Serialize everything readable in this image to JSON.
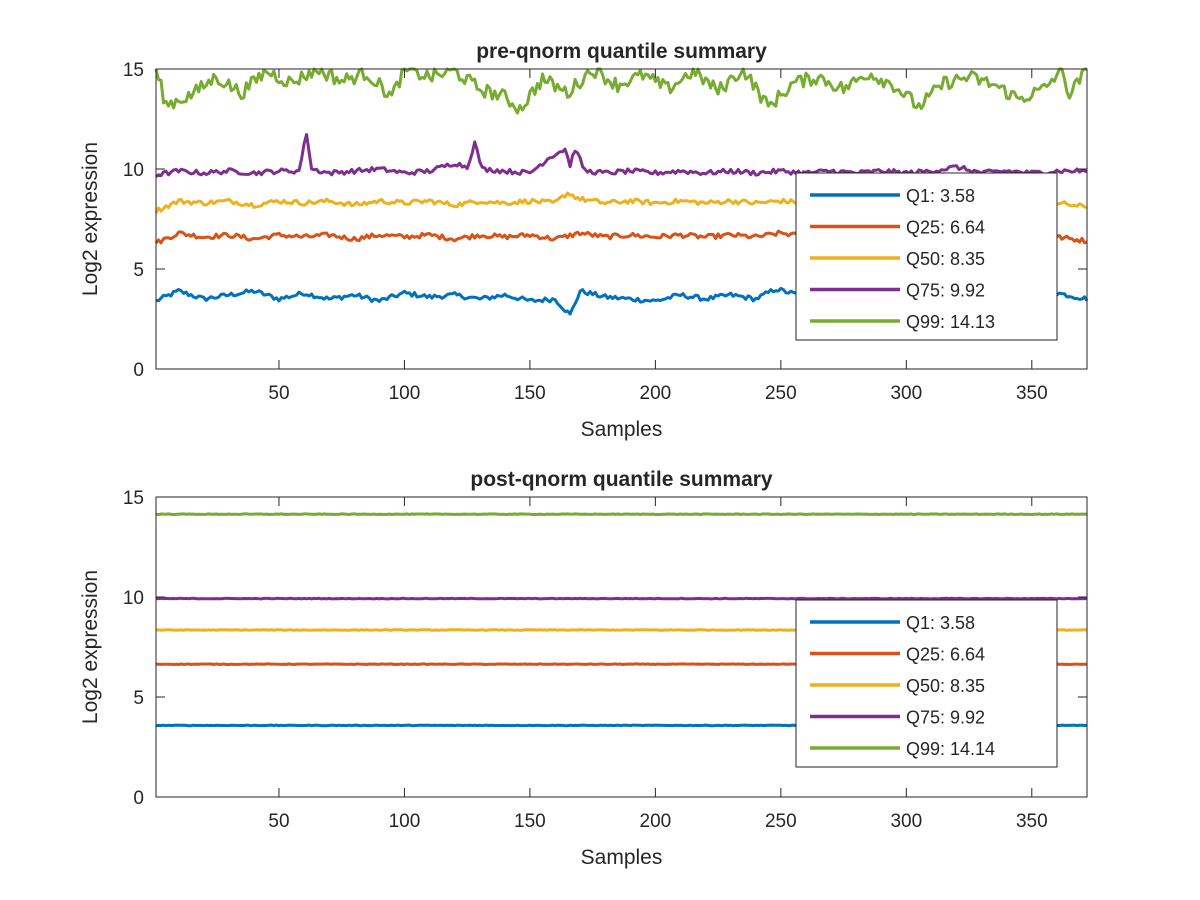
{
  "figure": {
    "background": "#ffffff"
  },
  "chart_data": [
    {
      "type": "line",
      "title": "pre-qnorm quantile summary",
      "xlabel": "Samples",
      "ylabel": "Log2 expression",
      "xlim": [
        1,
        372
      ],
      "ylim": [
        0,
        15
      ],
      "xticks": [
        50,
        100,
        150,
        200,
        250,
        300,
        350
      ],
      "yticks": [
        0,
        5,
        10,
        15
      ],
      "grid": false,
      "legend_position": "right-middle",
      "n_samples": 372,
      "series": [
        {
          "name": "Q1: 3.58",
          "color": "#0072BD",
          "mean": 3.58,
          "values_by_x": [
            [
              1,
              3.4
            ],
            [
              10,
              3.9
            ],
            [
              20,
              3.5
            ],
            [
              30,
              3.7
            ],
            [
              40,
              3.9
            ],
            [
              50,
              3.5
            ],
            [
              60,
              3.8
            ],
            [
              70,
              3.5
            ],
            [
              80,
              3.7
            ],
            [
              90,
              3.4
            ],
            [
              100,
              3.8
            ],
            [
              110,
              3.6
            ],
            [
              120,
              3.7
            ],
            [
              130,
              3.5
            ],
            [
              140,
              3.7
            ],
            [
              150,
              3.4
            ],
            [
              160,
              3.5
            ],
            [
              166,
              2.7
            ],
            [
              170,
              3.9
            ],
            [
              180,
              3.6
            ],
            [
              190,
              3.5
            ],
            [
              200,
              3.4
            ],
            [
              210,
              3.7
            ],
            [
              220,
              3.5
            ],
            [
              230,
              3.7
            ],
            [
              240,
              3.5
            ],
            [
              248,
              4.0
            ],
            [
              260,
              3.6
            ],
            [
              270,
              3.5
            ],
            [
              280,
              3.7
            ],
            [
              290,
              3.6
            ],
            [
              300,
              3.7
            ],
            [
              310,
              3.5
            ],
            [
              320,
              3.6
            ],
            [
              330,
              3.4
            ],
            [
              340,
              3.7
            ],
            [
              350,
              3.5
            ],
            [
              360,
              3.8
            ],
            [
              372,
              3.5
            ]
          ]
        },
        {
          "name": "Q25: 6.64",
          "color": "#D95319",
          "mean": 6.64,
          "values_by_x": [
            [
              1,
              6.3
            ],
            [
              10,
              6.8
            ],
            [
              20,
              6.6
            ],
            [
              30,
              6.7
            ],
            [
              40,
              6.5
            ],
            [
              50,
              6.7
            ],
            [
              60,
              6.6
            ],
            [
              70,
              6.7
            ],
            [
              80,
              6.5
            ],
            [
              90,
              6.7
            ],
            [
              100,
              6.6
            ],
            [
              110,
              6.7
            ],
            [
              120,
              6.5
            ],
            [
              130,
              6.7
            ],
            [
              140,
              6.6
            ],
            [
              150,
              6.7
            ],
            [
              160,
              6.5
            ],
            [
              170,
              6.8
            ],
            [
              180,
              6.6
            ],
            [
              190,
              6.7
            ],
            [
              200,
              6.6
            ],
            [
              210,
              6.7
            ],
            [
              220,
              6.6
            ],
            [
              230,
              6.7
            ],
            [
              240,
              6.6
            ],
            [
              250,
              6.8
            ],
            [
              260,
              6.6
            ],
            [
              270,
              6.7
            ],
            [
              280,
              6.6
            ],
            [
              290,
              6.7
            ],
            [
              300,
              6.6
            ],
            [
              310,
              6.7
            ],
            [
              320,
              6.6
            ],
            [
              330,
              6.7
            ],
            [
              340,
              6.6
            ],
            [
              350,
              6.7
            ],
            [
              360,
              6.6
            ],
            [
              372,
              6.4
            ]
          ]
        },
        {
          "name": "Q50: 8.35",
          "color": "#EDB120",
          "mean": 8.35,
          "values_by_x": [
            [
              1,
              7.9
            ],
            [
              10,
              8.4
            ],
            [
              20,
              8.3
            ],
            [
              30,
              8.4
            ],
            [
              40,
              8.2
            ],
            [
              50,
              8.4
            ],
            [
              60,
              8.3
            ],
            [
              70,
              8.4
            ],
            [
              80,
              8.2
            ],
            [
              90,
              8.4
            ],
            [
              100,
              8.3
            ],
            [
              110,
              8.4
            ],
            [
              120,
              8.2
            ],
            [
              130,
              8.4
            ],
            [
              140,
              8.3
            ],
            [
              150,
              8.4
            ],
            [
              160,
              8.3
            ],
            [
              165,
              8.8
            ],
            [
              170,
              8.5
            ],
            [
              180,
              8.3
            ],
            [
              190,
              8.4
            ],
            [
              200,
              8.3
            ],
            [
              210,
              8.4
            ],
            [
              220,
              8.3
            ],
            [
              230,
              8.4
            ],
            [
              240,
              8.3
            ],
            [
              250,
              8.4
            ],
            [
              260,
              8.3
            ],
            [
              270,
              8.4
            ],
            [
              280,
              8.3
            ],
            [
              290,
              8.4
            ],
            [
              300,
              8.3
            ],
            [
              310,
              8.4
            ],
            [
              320,
              8.3
            ],
            [
              330,
              8.4
            ],
            [
              340,
              8.3
            ],
            [
              350,
              8.4
            ],
            [
              360,
              8.3
            ],
            [
              372,
              8.1
            ]
          ]
        },
        {
          "name": "Q75: 9.92",
          "color": "#7E2F8E",
          "mean": 9.92,
          "values_by_x": [
            [
              1,
              9.7
            ],
            [
              10,
              9.9
            ],
            [
              20,
              9.8
            ],
            [
              30,
              9.9
            ],
            [
              40,
              9.8
            ],
            [
              50,
              9.9
            ],
            [
              58,
              9.9
            ],
            [
              61,
              11.8
            ],
            [
              63,
              10.0
            ],
            [
              70,
              9.8
            ],
            [
              80,
              9.9
            ],
            [
              90,
              10.0
            ],
            [
              100,
              9.8
            ],
            [
              110,
              9.9
            ],
            [
              120,
              10.3
            ],
            [
              125,
              10.1
            ],
            [
              128,
              11.3
            ],
            [
              131,
              10.0
            ],
            [
              140,
              9.9
            ],
            [
              150,
              9.8
            ],
            [
              158,
              10.6
            ],
            [
              164,
              11.0
            ],
            [
              166,
              10.2
            ],
            [
              168,
              11.0
            ],
            [
              172,
              9.9
            ],
            [
              180,
              9.8
            ],
            [
              190,
              9.9
            ],
            [
              200,
              9.8
            ],
            [
              210,
              9.9
            ],
            [
              220,
              9.8
            ],
            [
              230,
              9.9
            ],
            [
              240,
              9.8
            ],
            [
              250,
              9.9
            ],
            [
              260,
              9.8
            ],
            [
              270,
              9.9
            ],
            [
              280,
              9.8
            ],
            [
              290,
              9.9
            ],
            [
              300,
              9.8
            ],
            [
              310,
              9.9
            ],
            [
              320,
              10.1
            ],
            [
              330,
              9.8
            ],
            [
              340,
              9.9
            ],
            [
              350,
              9.8
            ],
            [
              360,
              9.9
            ],
            [
              372,
              9.9
            ]
          ]
        },
        {
          "name": "Q99: 14.13",
          "color": "#77AC30",
          "mean": 14.13,
          "values_by_x": [
            [
              1,
              15.0
            ],
            [
              5,
              13.2
            ],
            [
              15,
              13.7
            ],
            [
              25,
              14.6
            ],
            [
              35,
              13.8
            ],
            [
              45,
              14.9
            ],
            [
              55,
              14.3
            ],
            [
              65,
              15.0
            ],
            [
              75,
              14.4
            ],
            [
              85,
              14.8
            ],
            [
              95,
              13.6
            ],
            [
              100,
              15.0
            ],
            [
              110,
              14.6
            ],
            [
              120,
              14.9
            ],
            [
              130,
              14.0
            ],
            [
              140,
              13.6
            ],
            [
              146,
              13.0
            ],
            [
              155,
              14.5
            ],
            [
              165,
              13.8
            ],
            [
              175,
              15.0
            ],
            [
              185,
              14.2
            ],
            [
              195,
              14.7
            ],
            [
              205,
              14.0
            ],
            [
              215,
              14.9
            ],
            [
              225,
              13.9
            ],
            [
              235,
              15.0
            ],
            [
              245,
              13.1
            ],
            [
              255,
              14.3
            ],
            [
              265,
              14.6
            ],
            [
              275,
              14.0
            ],
            [
              285,
              14.8
            ],
            [
              295,
              14.2
            ],
            [
              305,
              13.1
            ],
            [
              315,
              14.3
            ],
            [
              325,
              14.6
            ],
            [
              335,
              14.2
            ],
            [
              345,
              13.5
            ],
            [
              355,
              14.0
            ],
            [
              362,
              15.0
            ],
            [
              365,
              13.7
            ],
            [
              372,
              15.0
            ]
          ]
        }
      ]
    },
    {
      "type": "line",
      "title": "post-qnorm quantile summary",
      "xlabel": "Samples",
      "ylabel": "Log2 expression",
      "xlim": [
        1,
        372
      ],
      "ylim": [
        0,
        15
      ],
      "xticks": [
        50,
        100,
        150,
        200,
        250,
        300,
        350
      ],
      "yticks": [
        0,
        5,
        10,
        15
      ],
      "grid": false,
      "legend_position": "right-middle",
      "n_samples": 372,
      "series": [
        {
          "name": "Q1: 3.58",
          "color": "#0072BD",
          "mean": 3.58,
          "values_by_x": [
            [
              1,
              3.58
            ],
            [
              372,
              3.58
            ]
          ]
        },
        {
          "name": "Q25: 6.64",
          "color": "#D95319",
          "mean": 6.64,
          "values_by_x": [
            [
              1,
              6.64
            ],
            [
              372,
              6.64
            ]
          ]
        },
        {
          "name": "Q50: 8.35",
          "color": "#EDB120",
          "mean": 8.35,
          "values_by_x": [
            [
              1,
              8.35
            ],
            [
              372,
              8.35
            ]
          ]
        },
        {
          "name": "Q75: 9.92",
          "color": "#7E2F8E",
          "mean": 9.92,
          "values_by_x": [
            [
              1,
              9.92
            ],
            [
              372,
              9.92
            ]
          ]
        },
        {
          "name": "Q99: 14.14",
          "color": "#77AC30",
          "mean": 14.14,
          "values_by_x": [
            [
              1,
              14.14
            ],
            [
              372,
              14.14
            ]
          ]
        }
      ]
    }
  ]
}
